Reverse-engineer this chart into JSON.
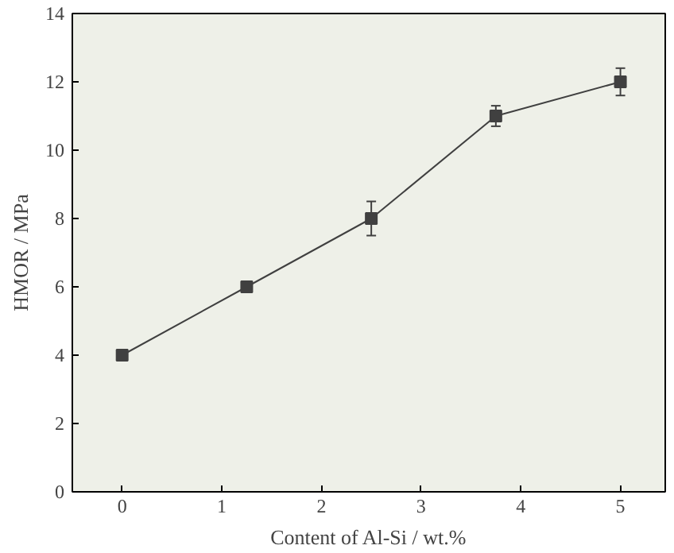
{
  "chart_data": {
    "type": "line",
    "xlabel": "Content of Al-Si / wt.%",
    "ylabel": "HMOR / MPa",
    "x": [
      0,
      1.25,
      2.5,
      3.75,
      5
    ],
    "series": [
      {
        "color": "#404040",
        "values": [
          4,
          6,
          8,
          11,
          12
        ],
        "errors": [
          0.15,
          0.15,
          0.5,
          0.3,
          0.4
        ]
      }
    ],
    "xlim": [
      -0.5,
      5.45
    ],
    "ylim": [
      0,
      14
    ],
    "xticks": [
      0,
      1,
      2,
      3,
      4,
      5
    ],
    "yticks": [
      0,
      2,
      4,
      6,
      8,
      10,
      12,
      14
    ],
    "marker": "square",
    "line_style": "solid"
  }
}
